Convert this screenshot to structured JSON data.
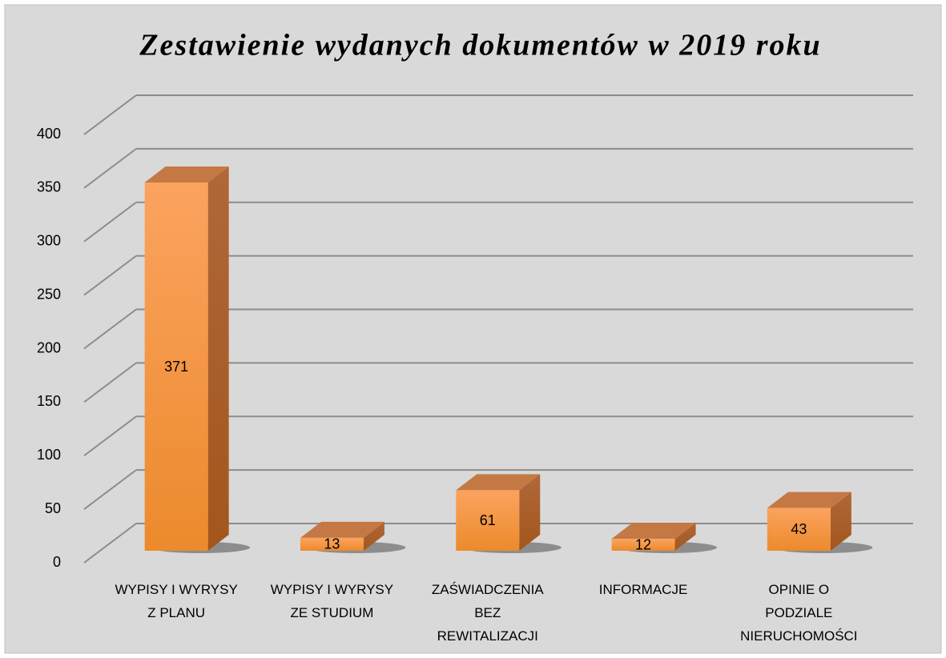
{
  "chart_data": {
    "type": "bar3d",
    "title": "Zestawienie wydanych dokumentów w 2019 roku",
    "categories": [
      "WYPISY I WYRYSY Z PLANU",
      "WYPISY I WYRYSY ZE STUDIUM",
      "ZAŚWIADCZENIA BEZ REWITALIZACJI",
      "INFORMACJE",
      "OPINIE O PODZIALE NIERUCHOMOŚCI"
    ],
    "values": [
      371,
      13,
      61,
      12,
      43
    ],
    "color": "#f7953f",
    "ylim": [
      0,
      400
    ],
    "yticks": [
      0,
      50,
      100,
      150,
      200,
      250,
      300,
      350,
      400
    ],
    "grid": true
  }
}
